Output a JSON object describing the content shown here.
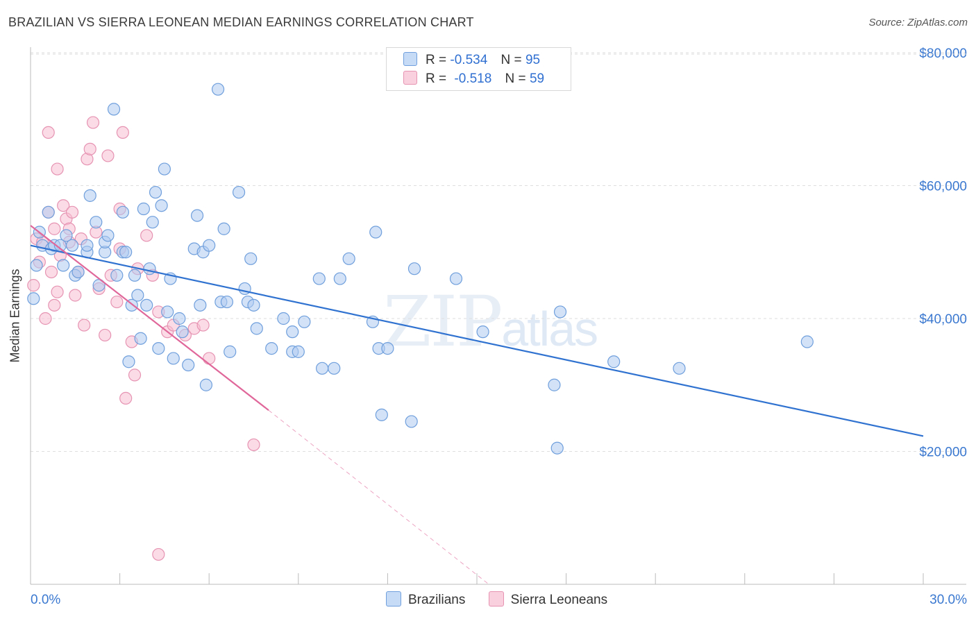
{
  "header": {
    "title": "BRAZILIAN VS SIERRA LEONEAN MEDIAN EARNINGS CORRELATION CHART",
    "source": "Source: ZipAtlas.com"
  },
  "watermark": {
    "left": "ZIP",
    "right": "atlas"
  },
  "legend": {
    "rows": [
      {
        "r_label": "R =",
        "r_value": "-0.534",
        "n_label": "N =",
        "n_value": "95"
      },
      {
        "r_label": "R =",
        "r_value": "-0.518",
        "n_label": "N =",
        "n_value": "59"
      }
    ],
    "series": [
      "Brazilians",
      "Sierra Leoneans"
    ]
  },
  "colors": {
    "blue_fill": "#aecbf0",
    "blue_stroke": "#6f9fdc",
    "blue_line": "#2f72d0",
    "pink_fill": "#f7bfd2",
    "pink_stroke": "#e693b2",
    "pink_line": "#e0679a",
    "axis_text": "#3a78d0"
  },
  "chart_data": {
    "type": "scatter",
    "title": "BRAZILIAN VS SIERRA LEONEAN MEDIAN EARNINGS CORRELATION CHART",
    "xlabel": "",
    "ylabel": "Median Earnings",
    "xlim": [
      0,
      30
    ],
    "ylim": [
      0,
      82000
    ],
    "x_tick_labels": [
      "0.0%",
      "30.0%"
    ],
    "y_ticks": [
      20000,
      40000,
      60000,
      80000
    ],
    "y_tick_labels": [
      "$20,000",
      "$40,000",
      "$60,000",
      "$80,000"
    ],
    "grid": true,
    "series": [
      {
        "name": "Brazilians",
        "r": -0.534,
        "n": 95,
        "trend": {
          "x0": 0,
          "y0": 51000,
          "x1": 30,
          "y1": 22300
        },
        "points": [
          [
            0.1,
            43000
          ],
          [
            0.2,
            48000
          ],
          [
            0.3,
            53000
          ],
          [
            0.4,
            51000
          ],
          [
            0.6,
            56000
          ],
          [
            0.7,
            50500
          ],
          [
            0.8,
            51000
          ],
          [
            1.0,
            51000
          ],
          [
            1.1,
            48000
          ],
          [
            1.2,
            52500
          ],
          [
            1.4,
            51000
          ],
          [
            1.5,
            46500
          ],
          [
            1.6,
            47000
          ],
          [
            1.9,
            50000
          ],
          [
            1.9,
            51000
          ],
          [
            2.0,
            58500
          ],
          [
            2.2,
            54500
          ],
          [
            2.3,
            45000
          ],
          [
            2.5,
            50000
          ],
          [
            2.5,
            51500
          ],
          [
            2.6,
            52500
          ],
          [
            2.8,
            71500
          ],
          [
            2.9,
            46500
          ],
          [
            3.1,
            56000
          ],
          [
            3.1,
            50000
          ],
          [
            3.2,
            50000
          ],
          [
            3.3,
            33500
          ],
          [
            3.4,
            42000
          ],
          [
            3.5,
            46500
          ],
          [
            3.6,
            43500
          ],
          [
            3.7,
            37000
          ],
          [
            3.8,
            56500
          ],
          [
            3.9,
            42000
          ],
          [
            4.0,
            47500
          ],
          [
            4.1,
            54500
          ],
          [
            4.2,
            59000
          ],
          [
            4.3,
            35500
          ],
          [
            4.4,
            57000
          ],
          [
            4.5,
            62500
          ],
          [
            4.6,
            41000
          ],
          [
            4.7,
            46000
          ],
          [
            4.8,
            34000
          ],
          [
            5.0,
            40000
          ],
          [
            5.1,
            38000
          ],
          [
            5.3,
            33000
          ],
          [
            5.5,
            50500
          ],
          [
            5.6,
            55500
          ],
          [
            5.7,
            42000
          ],
          [
            5.8,
            50000
          ],
          [
            5.9,
            30000
          ],
          [
            6.0,
            51000
          ],
          [
            6.3,
            74500
          ],
          [
            6.4,
            42500
          ],
          [
            6.5,
            53500
          ],
          [
            6.6,
            42500
          ],
          [
            6.7,
            35000
          ],
          [
            7.0,
            59000
          ],
          [
            7.2,
            44500
          ],
          [
            7.3,
            42500
          ],
          [
            7.4,
            49000
          ],
          [
            7.5,
            42000
          ],
          [
            7.6,
            38500
          ],
          [
            8.1,
            35500
          ],
          [
            8.5,
            40000
          ],
          [
            8.8,
            35000
          ],
          [
            8.8,
            38000
          ],
          [
            9.0,
            35000
          ],
          [
            9.2,
            39500
          ],
          [
            9.7,
            46000
          ],
          [
            9.8,
            32500
          ],
          [
            10.2,
            32500
          ],
          [
            10.4,
            46000
          ],
          [
            10.7,
            49000
          ],
          [
            11.5,
            39500
          ],
          [
            11.6,
            53000
          ],
          [
            11.7,
            35500
          ],
          [
            11.8,
            25500
          ],
          [
            12.0,
            35500
          ],
          [
            12.8,
            24500
          ],
          [
            12.9,
            47500
          ],
          [
            14.3,
            46000
          ],
          [
            15.2,
            38000
          ],
          [
            17.6,
            30000
          ],
          [
            17.7,
            20500
          ],
          [
            17.8,
            41000
          ],
          [
            19.6,
            33500
          ],
          [
            21.8,
            32500
          ],
          [
            26.1,
            36500
          ]
        ]
      },
      {
        "name": "Sierra Leoneans",
        "r": -0.518,
        "n": 59,
        "trend": {
          "x0": 0,
          "y0": 54000,
          "x1": 8.0,
          "y1": 26200,
          "dash_x1": 15.4,
          "dash_y1": 0
        },
        "points": [
          [
            0.1,
            45000
          ],
          [
            0.2,
            52000
          ],
          [
            0.3,
            48500
          ],
          [
            0.4,
            51500
          ],
          [
            0.5,
            40000
          ],
          [
            0.6,
            68000
          ],
          [
            0.6,
            56000
          ],
          [
            0.7,
            47000
          ],
          [
            0.8,
            42000
          ],
          [
            0.8,
            53500
          ],
          [
            0.9,
            44000
          ],
          [
            0.9,
            62500
          ],
          [
            1.0,
            49500
          ],
          [
            1.1,
            57000
          ],
          [
            1.2,
            55000
          ],
          [
            1.3,
            51500
          ],
          [
            1.3,
            53500
          ],
          [
            1.4,
            56000
          ],
          [
            1.5,
            43500
          ],
          [
            1.6,
            47000
          ],
          [
            1.7,
            52000
          ],
          [
            1.8,
            39000
          ],
          [
            1.9,
            64000
          ],
          [
            2.0,
            65500
          ],
          [
            2.1,
            69500
          ],
          [
            2.2,
            53000
          ],
          [
            2.3,
            44500
          ],
          [
            2.5,
            37500
          ],
          [
            2.6,
            64500
          ],
          [
            2.7,
            46500
          ],
          [
            2.9,
            42500
          ],
          [
            3.0,
            56500
          ],
          [
            3.0,
            50500
          ],
          [
            3.1,
            68000
          ],
          [
            3.2,
            28000
          ],
          [
            3.4,
            36500
          ],
          [
            3.5,
            31500
          ],
          [
            3.6,
            47500
          ],
          [
            3.9,
            52500
          ],
          [
            4.1,
            46500
          ],
          [
            4.3,
            41000
          ],
          [
            4.6,
            38000
          ],
          [
            4.8,
            39000
          ],
          [
            5.2,
            37500
          ],
          [
            5.5,
            38500
          ],
          [
            5.8,
            39000
          ],
          [
            6.0,
            34000
          ],
          [
            7.5,
            21000
          ],
          [
            4.3,
            4500
          ]
        ]
      }
    ]
  }
}
